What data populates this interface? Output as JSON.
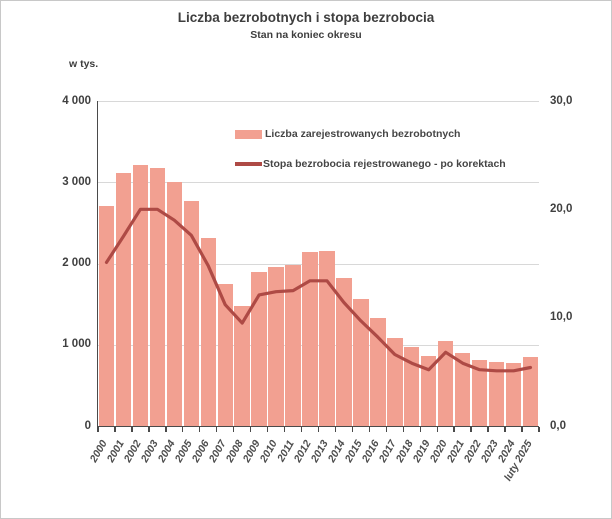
{
  "header": {
    "title": "Liczba bezrobotnych i stopa bezrobocia",
    "subtitle": "Stan na koniec okresu"
  },
  "colors": {
    "bar_fill": "#F2A091",
    "line_stroke": "#AE4A45",
    "gridline": "#D8D8D8",
    "axis_line": "#4A4A4A",
    "text": "#3E3E3E",
    "frame_border": "#C8C8C8"
  },
  "chart_data": {
    "type": "bar",
    "title": "Liczba bezrobotnych i stopa bezrobocia",
    "subtitle": "Stan na koniec okresu",
    "categories": [
      "2000",
      "2001",
      "2002",
      "2003",
      "2004",
      "2005",
      "2006",
      "2007",
      "2008",
      "2009",
      "2010",
      "2011",
      "2012",
      "2013",
      "2014",
      "2015",
      "2016",
      "2017",
      "2018",
      "2019",
      "2020",
      "2021",
      "2022",
      "2023",
      "2024",
      "luty 2025"
    ],
    "series": [
      {
        "name": "Liczba zarejestrowanych bezrobotnych",
        "type": "bar",
        "axis": "left",
        "color": "#F2A091",
        "values": [
          2703,
          3115,
          3217,
          3176,
          3000,
          2773,
          2309,
          1747,
          1474,
          1893,
          1955,
          1983,
          2137,
          2158,
          1825,
          1563,
          1335,
          1082,
          969,
          866,
          1046,
          895,
          812,
          788,
          773,
          853
        ]
      },
      {
        "name": "Stopa bezrobocia rejestrowanego - po korektach",
        "type": "line",
        "axis": "right",
        "color": "#AE4A45",
        "values": [
          15.1,
          17.5,
          20.0,
          20.0,
          19.0,
          17.6,
          14.8,
          11.2,
          9.5,
          12.1,
          12.4,
          12.5,
          13.4,
          13.4,
          11.4,
          9.7,
          8.2,
          6.6,
          5.8,
          5.2,
          6.8,
          5.8,
          5.2,
          5.1,
          5.1,
          5.4
        ]
      }
    ],
    "left_axis": {
      "label": "w tys.",
      "min": 0,
      "max": 4000,
      "tick_labels_top_to_bottom": [
        "4 000",
        "3 000",
        "2 000",
        "1 000",
        "0"
      ]
    },
    "right_axis": {
      "min": 0,
      "max": 30,
      "tick_labels_top_to_bottom": [
        "30,0",
        "20,0",
        "10,0",
        "0,0"
      ]
    },
    "grid": true,
    "legend_position": "top-inside"
  }
}
